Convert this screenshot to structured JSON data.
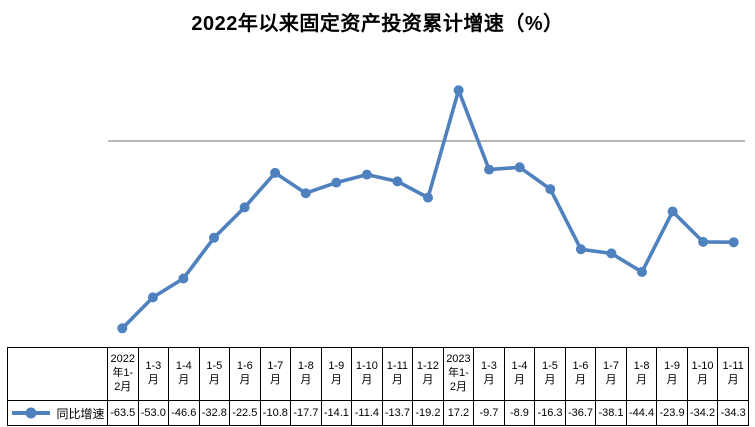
{
  "chart_data": {
    "type": "line",
    "title": "2022年以来固定资产投资累计增速（%）",
    "legend_position": "bottom-left (data table legend key)",
    "grid": "single horizontal zero line, no axis tick labels",
    "line_color": "#4E81BD",
    "gridline_color": "#8C8C8C",
    "ylim": [
      -70,
      25
    ],
    "categories": [
      "2022年1-2月",
      "1-3月",
      "1-4月",
      "1-5月",
      "1-6月",
      "1-7月",
      "1-8月",
      "1-9月",
      "1-10月",
      "1-11月",
      "1-12月",
      "2023年1-2月",
      "1-3月",
      "1-4月",
      "1-5月",
      "1-6月",
      "1-7月",
      "1-8月",
      "1-9月",
      "1-10月",
      "1-11月"
    ],
    "series": [
      {
        "name": "同比增速",
        "values": [
          -63.5,
          -53.0,
          -46.6,
          -32.8,
          -22.5,
          -10.8,
          -17.7,
          -14.1,
          -11.4,
          -13.7,
          -19.2,
          17.2,
          -9.7,
          -8.9,
          -16.3,
          -36.7,
          -38.1,
          -44.4,
          -23.9,
          -34.2,
          -34.3
        ]
      }
    ]
  }
}
